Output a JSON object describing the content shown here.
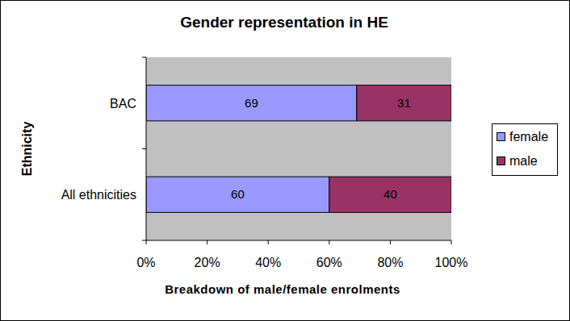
{
  "chart_data": {
    "type": "bar",
    "title": "Gender representation in HE",
    "orientation": "horizontal",
    "stacked": true,
    "data_labels": true,
    "grid": false,
    "legend": "right",
    "categories": [
      "BAC",
      "All ethnicities"
    ],
    "y_label": "Ethnicity",
    "x_label": "Breakdown of male/female enrolments",
    "series": [
      {
        "name": "female",
        "color": "#9999ff",
        "values": [
          69,
          60
        ]
      },
      {
        "name": "male",
        "color": "#993366",
        "values": [
          31,
          40
        ]
      }
    ],
    "xlim": [
      0,
      100
    ],
    "xticks": [
      {
        "value": 0,
        "label": "0%"
      },
      {
        "value": 20,
        "label": "20%"
      },
      {
        "value": 40,
        "label": "40%"
      },
      {
        "value": 60,
        "label": "60%"
      },
      {
        "value": 80,
        "label": "80%"
      },
      {
        "value": 100,
        "label": "100%"
      }
    ]
  }
}
